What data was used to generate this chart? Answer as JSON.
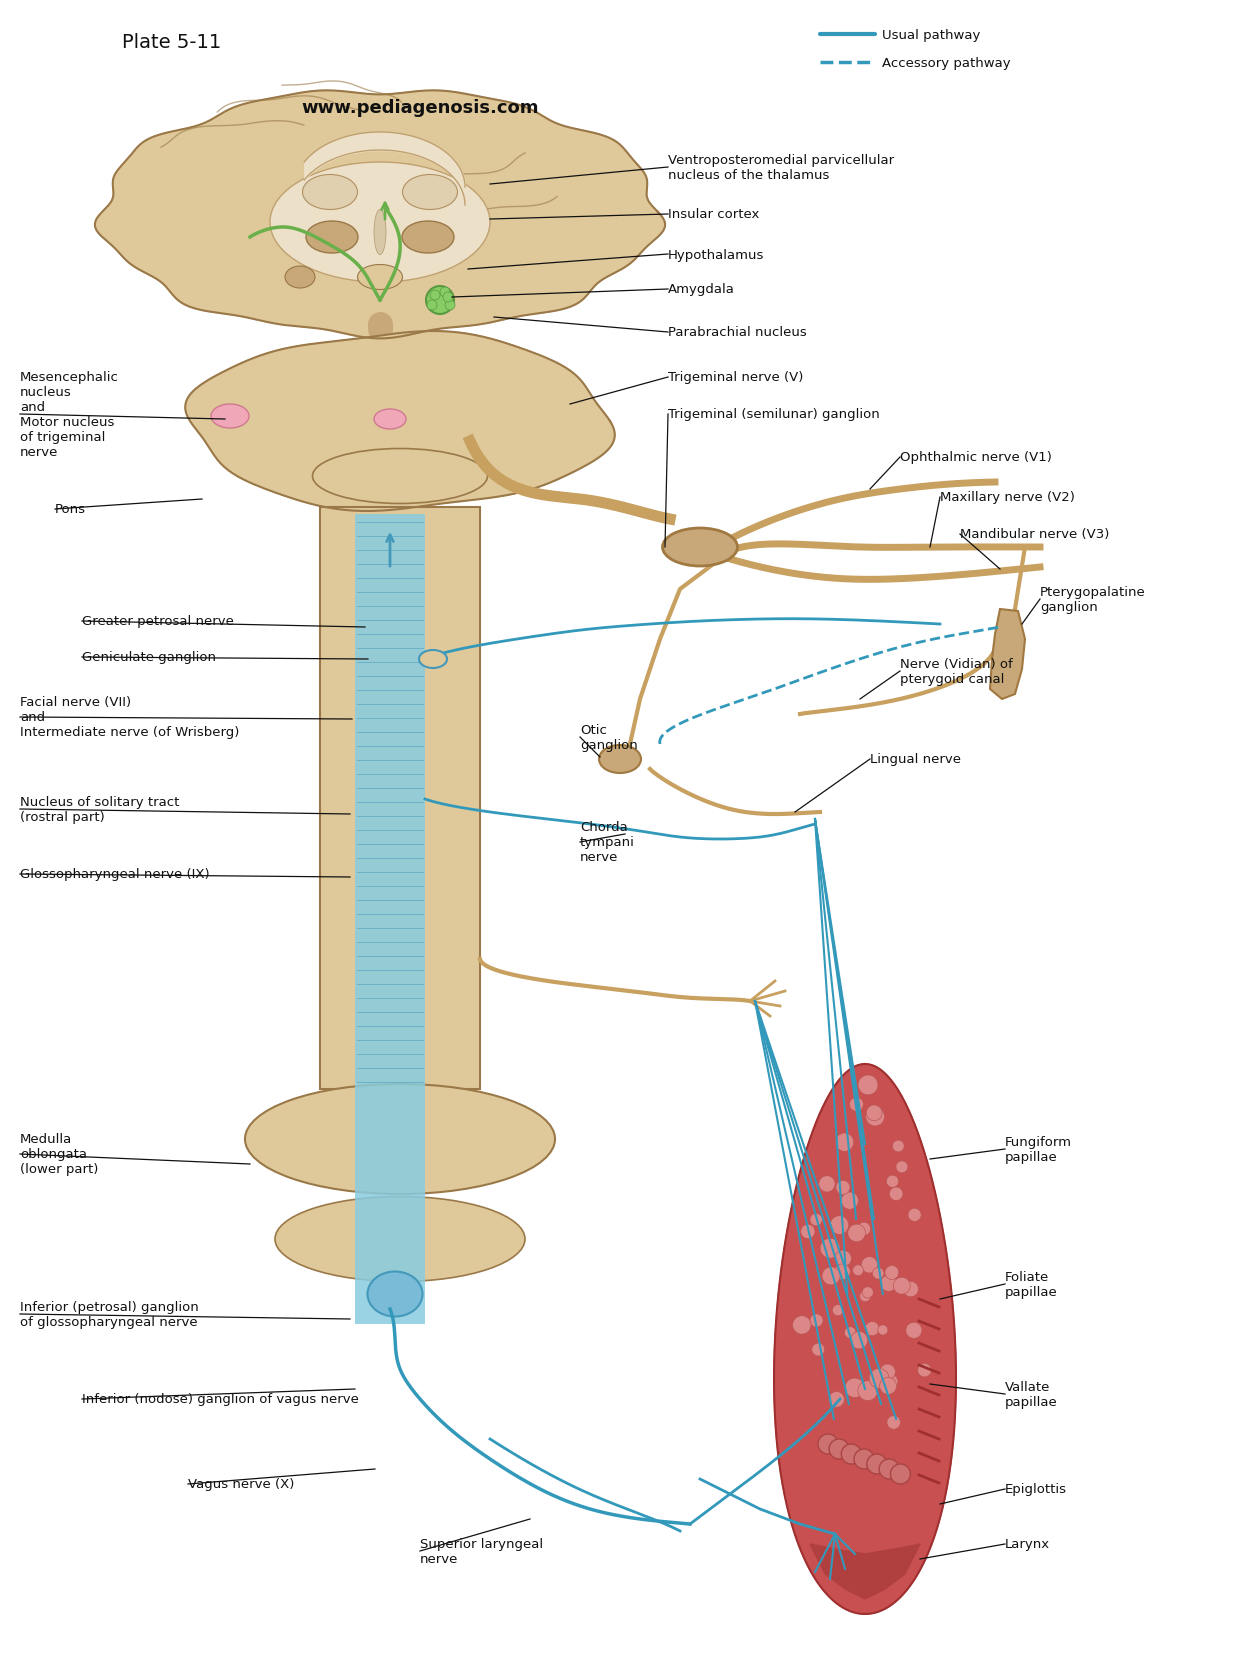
{
  "title": "Plate 5-11",
  "website": "www.pediagenosis.com",
  "bg_color": "#ffffff",
  "usual_pathway_color": "#3399bb",
  "accessory_pathway_color": "#3399bb",
  "brain_color": "#c8a878",
  "brain_light": "#dfc99a",
  "brain_dark": "#b8945a",
  "brain_white": "#ede0c8",
  "green_color": "#6ab04a",
  "pink_color": "#f0b0c0",
  "tongue_color": "#c85050",
  "tongue_light": "#d87070",
  "tongue_dark": "#a03030",
  "nerve_tan": "#c8a060",
  "nerve_dark": "#a07840",
  "blue_stem": "#88cce0",
  "blue_stem_dark": "#4499bb",
  "text_color": "#111111",
  "line_color": "#111111",
  "labels": {
    "ventroposteromedial": "Ventroposteromedial parvicellular\nnucleus of the thalamus",
    "insular_cortex": "Insular cortex",
    "hypothalamus": "Hypothalamus",
    "amygdala": "Amygdala",
    "parabrachial": "Parabrachial nucleus",
    "trigeminal_nerve": "Trigeminal nerve (V)",
    "trigeminal_ganglion": "Trigeminal (semilunar) ganglion",
    "ophthalmic": "Ophthalmic nerve (V1)",
    "maxillary": "Maxillary nerve (V2)",
    "mandibular": "Mandibular nerve (V3)",
    "pterygopalatine": "Pterygopalatine\nganglion",
    "nerve_vidian": "Nerve (Vidian) of\npterygoid canal",
    "lingual_nerve": "Lingual nerve",
    "otic_ganglion": "Otic\nganglion",
    "chorda_tympani": "Chorda\ntympani\nnerve",
    "fungiform": "Fungiform\npapillae",
    "foliate": "Foliate\npapillae",
    "vallate": "Vallate\npapillae",
    "epiglottis": "Epiglottis",
    "larynx": "Larynx",
    "mesencephalic": "Mesencephalic\nnucleus\nand\nMotor nucleus\nof trigeminal\nnerve",
    "pons": "Pons",
    "greater_petrosal": "Greater petrosal nerve",
    "geniculate": "Geniculate ganglion",
    "facial_nerve": "Facial nerve (VII)\nand\nIntermediate nerve (of Wrisberg)",
    "nucleus_solitary": "Nucleus of solitary tract\n(rostral part)",
    "glossopharyngeal": "Glossopharyngeal nerve (IX)",
    "medulla": "Medulla\noblongata\n(lower part)",
    "inferior_petrosal": "Inferior (petrosal) ganglion\nof glossopharyngeal nerve",
    "inferior_nodose": "Inferior (nodose) ganglion of vagus nerve",
    "vagus_nerve": "Vagus nerve (X)",
    "superior_laryngeal": "Superior laryngeal\nnerve"
  }
}
